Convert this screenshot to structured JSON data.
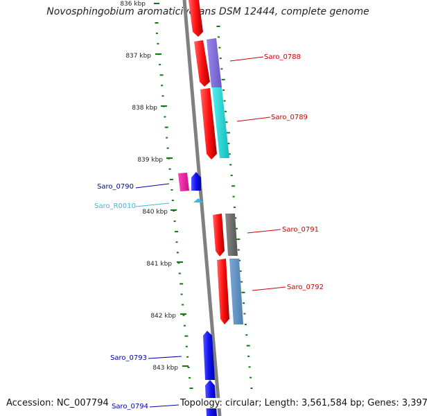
{
  "title": "Novosphingobium aromaticivorans DSM 12444, complete genome",
  "footer": {
    "accession": "Accession: NC_007794",
    "summary": "Topology: circular; Length: 3,561,584 bp; Genes: 3,397"
  },
  "scale_labels": [
    "836 kbp",
    "837 kbp",
    "838 kbp",
    "839 kbp",
    "840 kbp",
    "841 kbp",
    "842 kbp",
    "843 kbp"
  ],
  "gene_labels": [
    {
      "name": "Saro_0788",
      "color": "#cc0000"
    },
    {
      "name": "Saro_0789",
      "color": "#cc0000"
    },
    {
      "name": "Saro_0790",
      "color": "#0000aa"
    },
    {
      "name": "Saro_R0010",
      "color": "#33bbdd"
    },
    {
      "name": "Saro_0791",
      "color": "#cc0000"
    },
    {
      "name": "Saro_0792",
      "color": "#cc0000"
    },
    {
      "name": "Saro_0793",
      "color": "#0000aa"
    },
    {
      "name": "Saro_0794",
      "color": "#0000aa"
    }
  ],
  "colors": {
    "backbone": "#808080",
    "tick": "#117711",
    "forward_gene": "#ee1111",
    "reverse_gene": "#1111ee",
    "rna_gene": "#33bbee"
  }
}
